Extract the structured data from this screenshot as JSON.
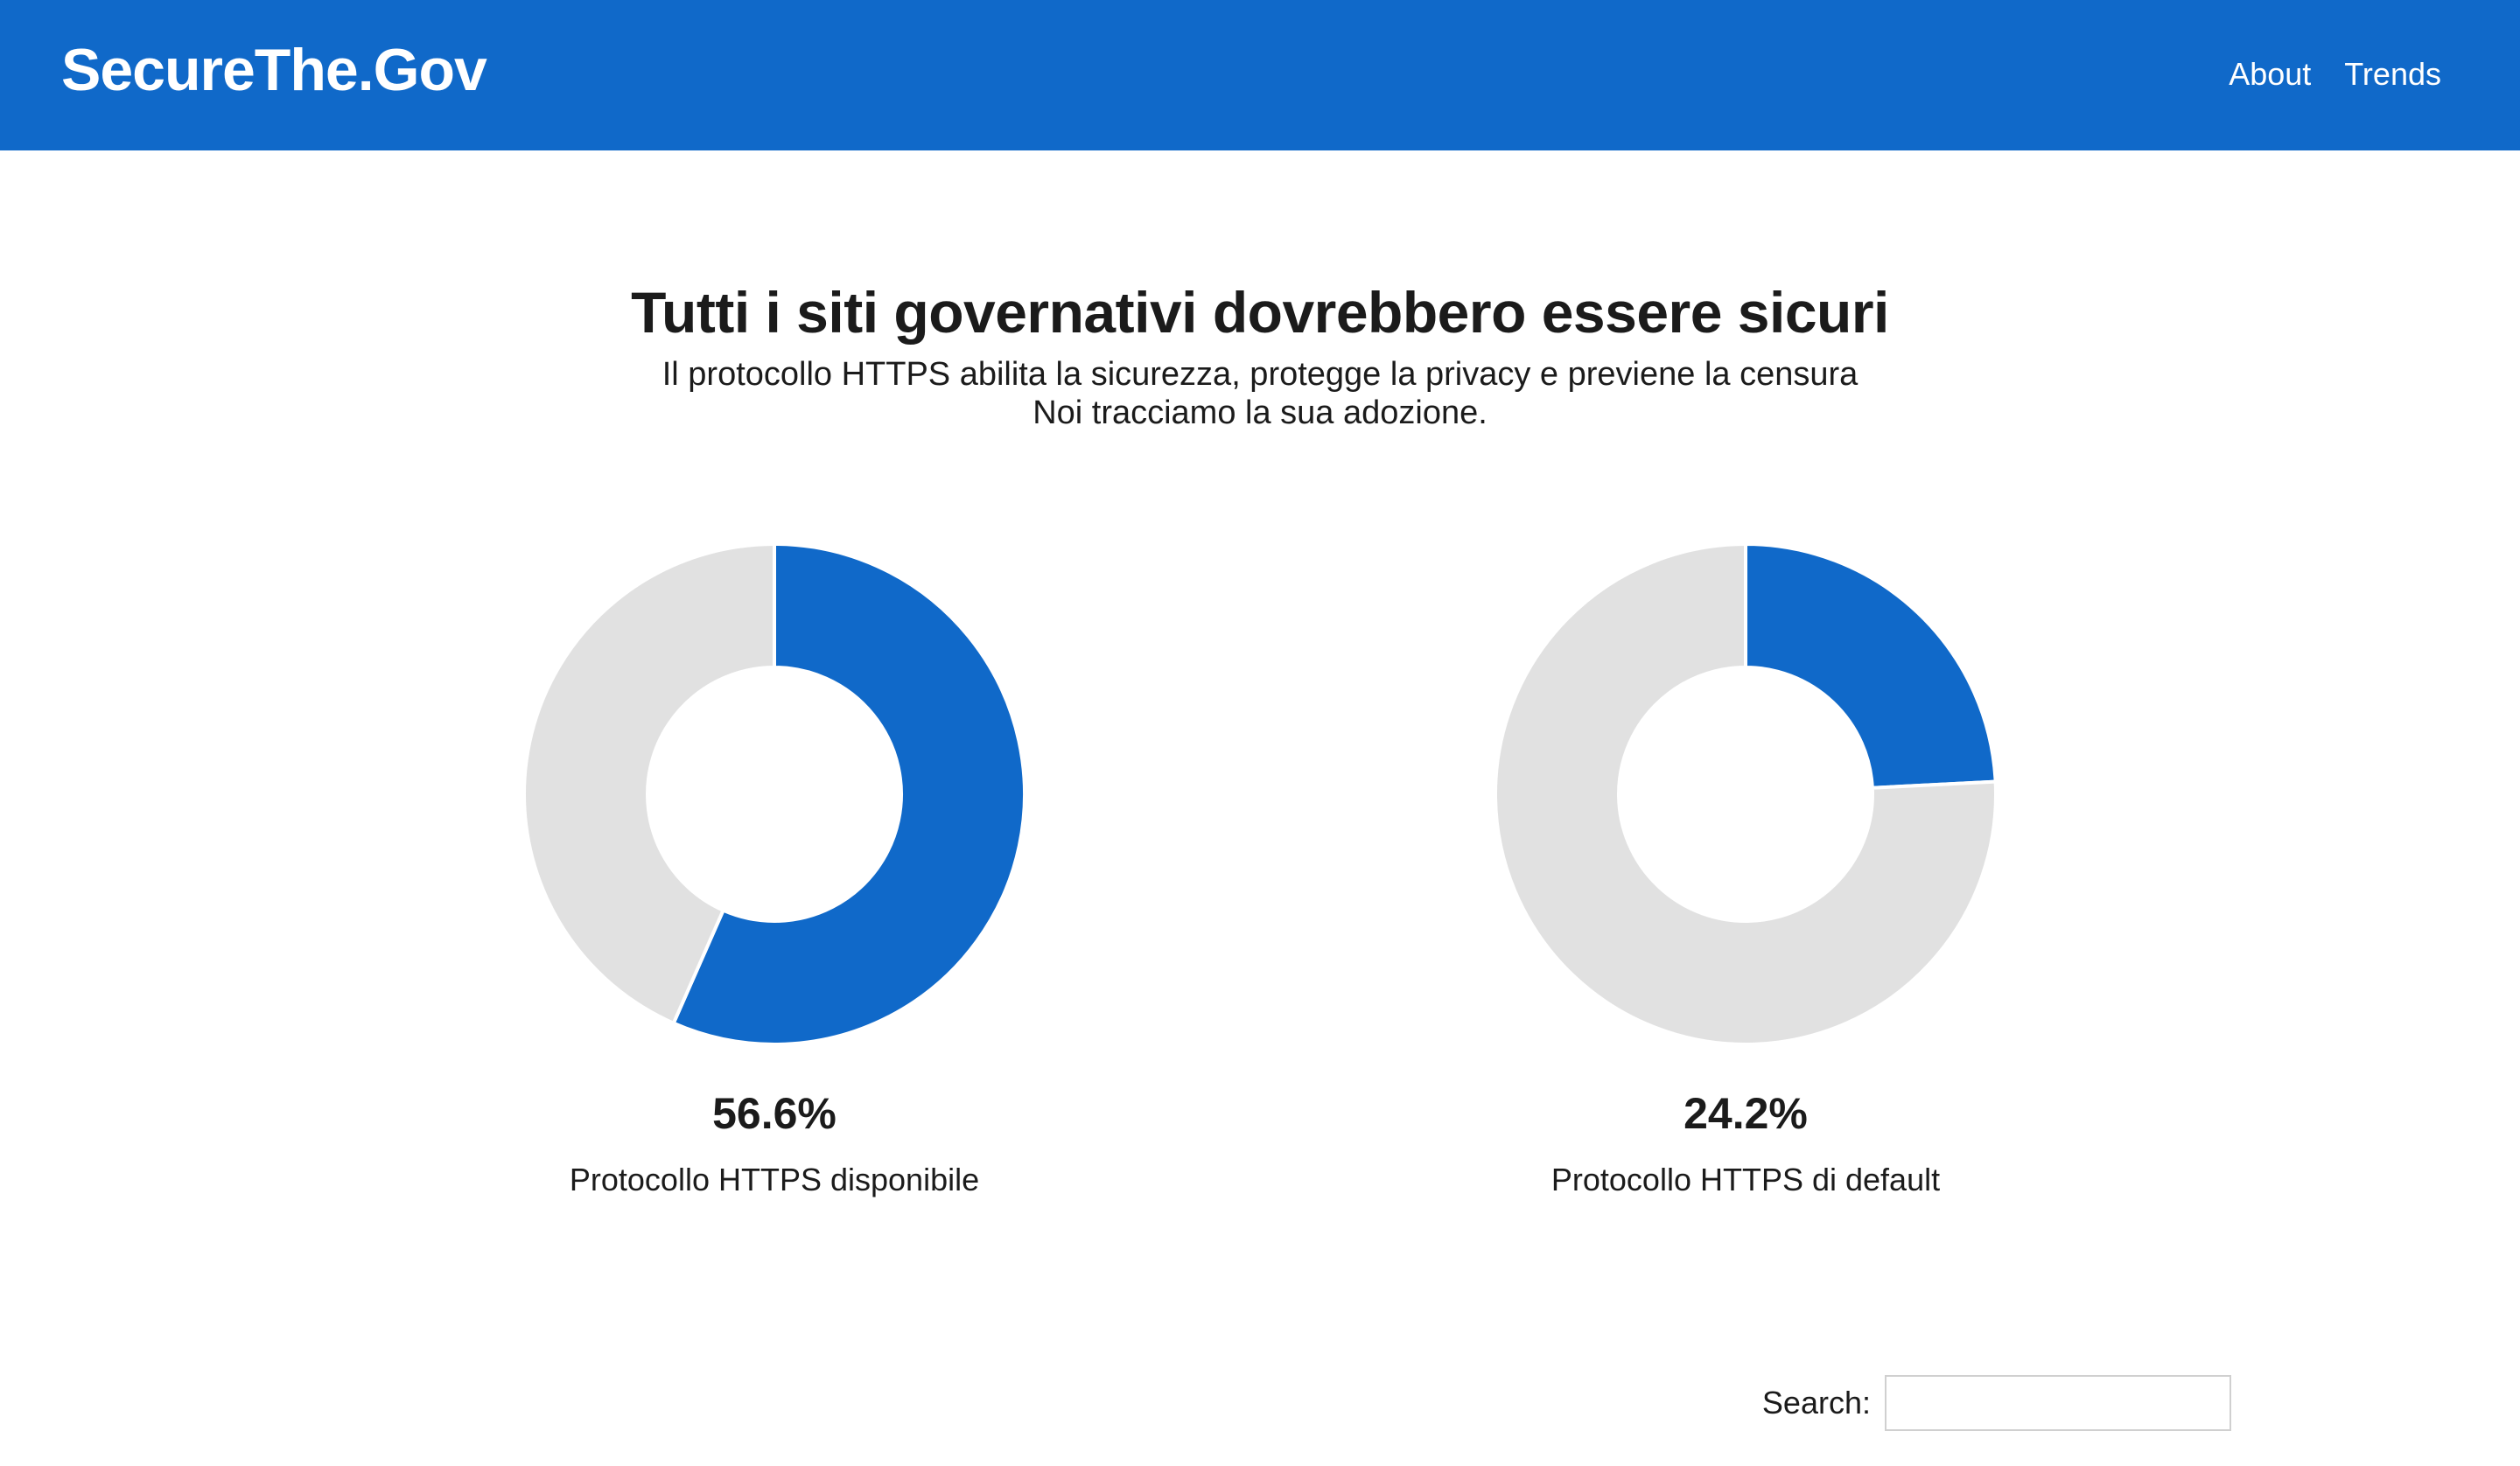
{
  "navbar": {
    "brand": "SecureThe.Gov",
    "links": [
      {
        "label": "About"
      },
      {
        "label": "Trends"
      }
    ],
    "color": "#1069c9"
  },
  "hero": {
    "title": "Tutti i siti governativi dovrebbero essere sicuri",
    "subtitle_line1": "Il protocollo HTTPS abilita la sicurezza, protegge la privacy e previene la censura",
    "subtitle_line2": "Noi tracciamo la sua adozione."
  },
  "charts": [
    {
      "value_text": "56.6%",
      "label": "Protocollo HTTPS disponibile"
    },
    {
      "value_text": "24.2%",
      "label": "Protocollo HTTPS di default"
    }
  ],
  "chart_data": [
    {
      "type": "pie",
      "slices": [
        {
          "value": 56.6,
          "color": "#1069c9"
        },
        {
          "value": 43.4,
          "color": "#e1e1e1"
        }
      ]
    },
    {
      "type": "pie",
      "slices": [
        {
          "value": 24.2,
          "color": "#1069c9"
        },
        {
          "value": 75.8,
          "color": "#e1e1e1"
        }
      ]
    }
  ],
  "search": {
    "label": "Search:",
    "value": "",
    "placeholder": ""
  }
}
